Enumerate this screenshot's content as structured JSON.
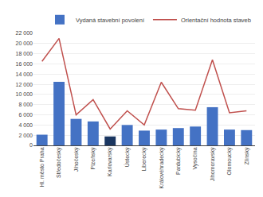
{
  "chart_data": {
    "type": "bar",
    "categories": [
      "Hl. město Praha",
      "Středočeský",
      "Jihočeský",
      "Plzeňský",
      "Karlovarský",
      "Ústecký",
      "Liberecký",
      "Královéhradecký",
      "Pardubický",
      "Vysočina",
      "Jihomoravský",
      "Olomoucký",
      "Zlínský"
    ],
    "series": [
      {
        "name": "Vydaná stavební povolení",
        "type": "bar",
        "colors": [
          "#4472C4",
          "#4472C4",
          "#4472C4",
          "#4472C4",
          "#1a3660",
          "#4472C4",
          "#4472C4",
          "#4472C4",
          "#4472C4",
          "#4472C4",
          "#4472C4",
          "#4472C4",
          "#4472C4"
        ],
        "values": [
          2100,
          12500,
          5200,
          4700,
          1750,
          4000,
          2900,
          3100,
          3400,
          3700,
          7500,
          3100,
          3000
        ]
      },
      {
        "name": "Orientační hodnota staveb",
        "type": "line",
        "color": "#C0504D",
        "values": [
          16500,
          21000,
          6000,
          9000,
          3200,
          6800,
          4000,
          12400,
          7200,
          6900,
          16800,
          6400,
          6800
        ]
      }
    ],
    "ylim": [
      0,
      22000
    ],
    "yticks": [
      0,
      {
        "value": 2000,
        "label": "2 000"
      },
      {
        "value": 4000,
        "label": "4 000"
      },
      {
        "value": 6000,
        "label": "6 000"
      },
      {
        "value": 8000,
        "label": "8 000"
      },
      {
        "value": 10000,
        "label": "10 000"
      },
      {
        "value": 12000,
        "label": "12 000"
      },
      {
        "value": 14000,
        "label": "14 000"
      },
      {
        "value": 16000,
        "label": "16 000"
      },
      {
        "value": 18000,
        "label": "18 000"
      },
      {
        "value": 20000,
        "label": "20 000"
      },
      {
        "value": 22000,
        "label": "22 000"
      }
    ],
    "grid": true,
    "legend": "upper right"
  }
}
